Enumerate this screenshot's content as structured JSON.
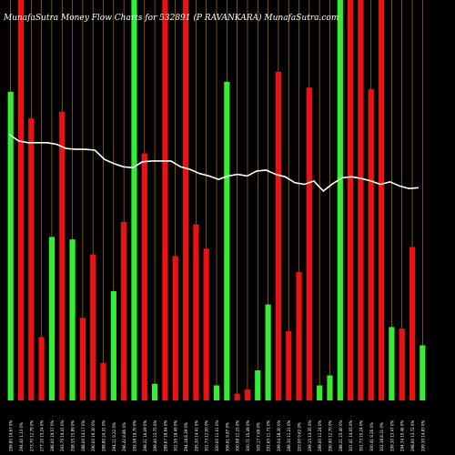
{
  "chart_data": {
    "type": "bar",
    "title": "MunafaSutra  Money Flow  Charts for 532891          (P                           RAVANKARA) MunafaSutra.com",
    "categories": [
      "Fri 14 Feb 2025",
      "Thu 13 Feb 2025",
      "Wed 12 Feb 2025",
      "Tue 11 Feb 2025",
      "Mon 10 Feb 2025",
      "Fri 07 Feb 2025",
      "Thu 06 Feb 2025",
      "Wed 05 Feb 2025",
      "Tue 04 Feb 2025",
      "Mon 03 Feb 2025",
      "Sat 01 Feb 2025",
      "Fri 31 Jan 2025",
      "Thu 30 Jan 2025",
      "Wed 29 Jan 2025",
      "Tue 28 Jan 2025",
      "Mon 27 Jan 2025",
      "Fri 24 Jan 2025",
      "Thu 23 Jan 2025",
      "Wed 22 Jan 2025",
      "Tue 21 Jan 2025",
      "Mon 20 Jan 2025",
      "Fri 17 Jan 2025",
      "Thu 16 Jan 2025",
      "Wed 15 Jan 2025",
      "Tue 14 Jan 2025",
      "Mon 13 Jan 2025",
      "Fri 10 Jan 2025",
      "Thu 09 Jan 2025",
      "Wed 08 Jan 2025",
      "Tue 07 Jan 2025",
      "Mon 06 Jan 2025",
      "Fri 03 Jan 2025",
      "Thu 02 Jan 2025",
      "Wed 01 Jan 2025",
      "Tue 31 Dec 2024",
      "Mon 30 Dec 2024",
      "Fri 27 Dec 2024",
      "Thu 26 Dec 2024",
      "Tue 24 Dec 2024",
      "Mon 23 Dec 2024",
      "Fri 20 Dec 2024",
      "Thu 19 Dec 2024",
      "Wed 18 Dec 2024",
      "Tue 17 Dec 2024",
      "Mon 16 Dec 2024",
      "Fri 13 Dec 2024",
      "Thu 12 Dec 2024",
      "Wed 11 Dec 2024",
      "Tue 10 Dec 2024",
      "Mon 09 Dec 2024",
      "Fri 06 Dec 2024",
      "Thu 05 Dec 2024"
    ],
    "tick_labels": [
      "299.80 14.67 0%",
      "294.40 1.13 0%",
      "273.70 12.79 0%",
      "277.10 15.24 0%",
      "286.00 19.57 0%",
      "293.75 19.41 0%",
      "298.35 15.89 0%",
      "288.00 14.17 0%",
      "290.00 19.30 0%",
      "288.80 24.31 0%",
      "294.11 9.22 0%",
      "296.42 8.86 0%",
      "295.58 19.70 0%",
      "298.31 16.09 0%",
      "299.40 23.75 0%",
      "289.67 18.64 0%",
      "301.59 18.49 0%",
      "294.18 8.39 0%",
      "295.30 14.41 0%",
      "301.73 12.00 0%",
      "300.00 11.01 0%",
      "306.61 9.87 0%",
      "300.98 11.25 0%",
      "300.71 15.49 0%",
      "305.17 7.69 0%",
      "291.65 11.71 0%",
      "299.04 18.30 0%",
      "288.30 11.21 0%",
      "293.00 9.62 0%",
      "299.15 13.35 0%",
      "289.00 11.24 0%",
      "290.90 12.70 0%",
      "288.31 23.40 0%",
      "301.41 14.05 0%",
      "301.73 10.24 0%",
      "300.41 9.26 0%",
      "302.38 8.31 0%",
      "299.30 13.47 0%",
      "294.34 10.46 0%",
      "298.00 13.72 0%",
      "299.30 14.83 0%",
      "300.71 21.61 0%",
      "301.21 19.00 0%",
      "298.43 7.25 0%",
      "303.21 14.05 0%",
      "297.62 9.32 0%",
      "296.31 12.84 0%",
      "301.10 14.30 0%",
      "302.68 11.27 0%",
      "295.50 13.07 0%",
      "295.41 12.46 0%",
      "296.61 11.38 0%"
    ],
    "series": [
      {
        "values": [
          1,
          0,
          0,
          0,
          0,
          0,
          0,
          0,
          0,
          0,
          0,
          0,
          0,
          0,
          0,
          0,
          0,
          0,
          0,
          0,
          0,
          0,
          0,
          0,
          0,
          0,
          0,
          0,
          0,
          0,
          0,
          0,
          0,
          0,
          0,
          0,
          0,
          0,
          0,
          0,
          0,
          0,
          0,
          0,
          0,
          0,
          0,
          0,
          0,
          0,
          0,
          0
        ]
      }
    ],
    "bars": [
      {
        "value": 370,
        "color": "green"
      },
      {
        "value": 480,
        "color": "red"
      },
      {
        "value": 338,
        "color": "red"
      },
      {
        "value": 76,
        "color": "red"
      },
      {
        "value": 196,
        "color": "green"
      },
      {
        "value": 346,
        "color": "red"
      },
      {
        "value": 193,
        "color": "green"
      },
      {
        "value": 99,
        "color": "red"
      },
      {
        "value": 175,
        "color": "red"
      },
      {
        "value": 45,
        "color": "red"
      },
      {
        "value": 131,
        "color": "green"
      },
      {
        "value": 214,
        "color": "red"
      },
      {
        "value": 480,
        "color": "green"
      },
      {
        "value": 296,
        "color": "red"
      },
      {
        "value": 20,
        "color": "green"
      },
      {
        "value": 480,
        "color": "red"
      },
      {
        "value": 173,
        "color": "red"
      },
      {
        "value": 480,
        "color": "red"
      },
      {
        "value": 211,
        "color": "red"
      },
      {
        "value": 182,
        "color": "red"
      },
      {
        "value": 18,
        "color": "green"
      },
      {
        "value": 382,
        "color": "green"
      },
      {
        "value": 8,
        "color": "red"
      },
      {
        "value": 13,
        "color": "red"
      },
      {
        "value": 36,
        "color": "green"
      },
      {
        "value": 115,
        "color": "green"
      },
      {
        "value": 394,
        "color": "red"
      },
      {
        "value": 83,
        "color": "red"
      },
      {
        "value": 154,
        "color": "red"
      },
      {
        "value": 375,
        "color": "red"
      },
      {
        "value": 18,
        "color": "green"
      },
      {
        "value": 30,
        "color": "green"
      },
      {
        "value": 480,
        "color": "green"
      },
      {
        "value": 480,
        "color": "red"
      },
      {
        "value": 480,
        "color": "red"
      },
      {
        "value": 373,
        "color": "red"
      },
      {
        "value": 480,
        "color": "red"
      },
      {
        "value": 88,
        "color": "green"
      },
      {
        "value": 86,
        "color": "red"
      },
      {
        "value": 184,
        "color": "red"
      },
      {
        "value": 66,
        "color": "green"
      }
    ],
    "line": [
      319,
      311,
      309,
      309,
      309,
      307,
      302,
      301,
      301,
      300,
      289,
      284,
      280,
      279,
      286,
      287,
      287,
      287,
      280,
      277,
      272,
      269,
      265,
      269,
      271,
      269,
      275,
      276,
      271,
      268,
      261,
      259,
      263,
      251,
      260,
      267,
      268,
      266,
      263,
      259,
      262,
      257,
      254,
      255
    ],
    "ylim": [
      0,
      500
    ],
    "colors": {
      "background": "#000000",
      "green": "#33ee33",
      "red": "#ee1111",
      "line": "#ffffff",
      "vgrid": "#cc8800"
    }
  }
}
